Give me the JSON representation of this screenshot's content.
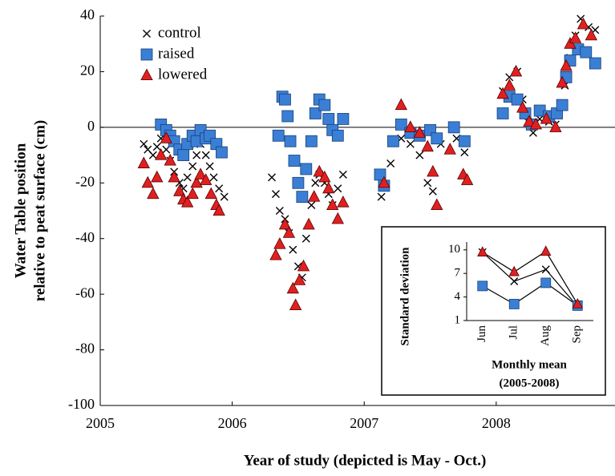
{
  "chart_data": [
    {
      "type": "scatter",
      "ylabel": [
        "Water Table position",
        "relative to peat surface (cm)"
      ],
      "xlabel": "Year of study (depicted is May -  Oct.)",
      "xlim": [
        2005,
        2008.9
      ],
      "ylim": [
        -100,
        40
      ],
      "xticks": [
        2005,
        2006,
        2007,
        2008
      ],
      "yticks": [
        -100,
        -80,
        -60,
        -40,
        -20,
        0,
        20,
        40
      ],
      "hline": 0,
      "legend": "upper left",
      "series": [
        {
          "name": "control",
          "color": "#000000",
          "marker": "x",
          "x": [
            2005.33,
            2005.36,
            2005.4,
            2005.43,
            2005.46,
            2005.5,
            2005.53,
            2005.56,
            2005.6,
            2005.63,
            2005.66,
            2005.7,
            2005.73,
            2005.76,
            2005.8,
            2005.83,
            2005.86,
            2005.9,
            2005.94,
            2006.3,
            2006.33,
            2006.36,
            2006.4,
            2006.43,
            2006.46,
            2006.5,
            2006.53,
            2006.56,
            2006.6,
            2006.63,
            2006.66,
            2006.7,
            2006.73,
            2006.76,
            2006.8,
            2006.84,
            2007.13,
            2007.2,
            2007.28,
            2007.35,
            2007.42,
            2007.48,
            2007.52,
            2007.58,
            2007.7,
            2007.76,
            2008.05,
            2008.1,
            2008.16,
            2008.2,
            2008.24,
            2008.28,
            2008.33,
            2008.4,
            2008.45,
            2008.52,
            2008.56,
            2008.6,
            2008.64,
            2008.7,
            2008.75
          ],
          "values": [
            -6,
            -8,
            -10,
            -7,
            -4,
            -8,
            -12,
            -16,
            -20,
            -22,
            -18,
            -14,
            -10,
            -6,
            -10,
            -14,
            -18,
            -22,
            -25,
            -18,
            -24,
            -30,
            -33,
            -38,
            -44,
            -50,
            -54,
            -40,
            -28,
            -20,
            -17,
            -20,
            -24,
            -28,
            -22,
            -17,
            -25,
            -13,
            -4,
            -6,
            -10,
            -20,
            -23,
            -6,
            -4,
            -9,
            13,
            18,
            20,
            10,
            2,
            -2,
            3,
            2,
            1,
            15,
            25,
            33,
            39,
            36,
            35
          ]
        },
        {
          "name": "raised",
          "color": "#3a7fd5",
          "marker": "square",
          "x": [
            2005.46,
            2005.5,
            2005.53,
            2005.56,
            2005.6,
            2005.63,
            2005.66,
            2005.7,
            2005.73,
            2005.76,
            2005.8,
            2005.83,
            2005.88,
            2005.92,
            2006.35,
            2006.38,
            2006.4,
            2006.42,
            2006.44,
            2006.47,
            2006.5,
            2006.53,
            2006.56,
            2006.6,
            2006.63,
            2006.66,
            2006.7,
            2006.73,
            2006.76,
            2006.8,
            2006.84,
            2007.12,
            2007.15,
            2007.22,
            2007.28,
            2007.35,
            2007.42,
            2007.5,
            2007.55,
            2007.68,
            2007.76,
            2008.05,
            2008.1,
            2008.16,
            2008.22,
            2008.27,
            2008.33,
            2008.4,
            2008.46,
            2008.5,
            2008.53,
            2008.56,
            2008.62,
            2008.68,
            2008.75
          ],
          "values": [
            1,
            -1,
            -3,
            -5,
            -8,
            -10,
            -6,
            -3,
            -5,
            -1,
            -4,
            -3,
            -6,
            -9,
            -3,
            11,
            10,
            4,
            -5,
            -12,
            -20,
            -25,
            -15,
            -5,
            5,
            10,
            8,
            3,
            -1,
            -3,
            3,
            -17,
            -21,
            -5,
            1,
            -2,
            -3,
            -1,
            -4,
            0,
            -5,
            5,
            11,
            10,
            5,
            1,
            6,
            4,
            5,
            8,
            18,
            24,
            28,
            27,
            23
          ]
        },
        {
          "name": "lowered",
          "color": "#e02020",
          "marker": "triangle",
          "x": [
            2005.33,
            2005.36,
            2005.4,
            2005.43,
            2005.46,
            2005.5,
            2005.53,
            2005.56,
            2005.6,
            2005.63,
            2005.66,
            2005.7,
            2005.73,
            2005.76,
            2005.8,
            2005.84,
            2005.88,
            2005.9,
            2006.33,
            2006.36,
            2006.4,
            2006.43,
            2006.46,
            2006.48,
            2006.51,
            2006.54,
            2006.58,
            2006.62,
            2006.66,
            2006.7,
            2006.73,
            2006.76,
            2006.8,
            2006.84,
            2007.15,
            2007.28,
            2007.35,
            2007.42,
            2007.48,
            2007.52,
            2007.55,
            2007.65,
            2007.75,
            2007.78,
            2008.05,
            2008.1,
            2008.15,
            2008.2,
            2008.25,
            2008.3,
            2008.38,
            2008.45,
            2008.5,
            2008.53,
            2008.56,
            2008.6,
            2008.66,
            2008.72
          ],
          "values": [
            -13,
            -20,
            -24,
            -18,
            -10,
            -4,
            -12,
            -18,
            -23,
            -26,
            -27,
            -24,
            -20,
            -17,
            -19,
            -24,
            -28,
            -30,
            -46,
            -42,
            -35,
            -38,
            -58,
            -64,
            -55,
            -50,
            -35,
            -25,
            -16,
            -18,
            -22,
            -28,
            -33,
            -27,
            -20,
            8,
            0,
            -2,
            -7,
            -16,
            -28,
            -8,
            -17,
            -19,
            12,
            15,
            20,
            7,
            2,
            1,
            3,
            0,
            16,
            22,
            30,
            32,
            37,
            33
          ]
        }
      ]
    },
    {
      "type": "line",
      "ylabel": "Standard deviation",
      "xlabel": [
        "Monthly mean",
        "(2005-2008)"
      ],
      "categories": [
        "Jun",
        "Jul",
        "Aug",
        "Sep"
      ],
      "ylim": [
        1,
        11
      ],
      "yticks": [
        1,
        4,
        7,
        10
      ],
      "series": [
        {
          "name": "control",
          "color": "#000000",
          "marker": "x",
          "values": [
            9.7,
            6,
            7.5,
            2.8
          ]
        },
        {
          "name": "raised",
          "color": "#3a7fd5",
          "marker": "square",
          "values": [
            5.4,
            3.1,
            5.8,
            2.9
          ]
        },
        {
          "name": "lowered",
          "color": "#e02020",
          "marker": "triangle",
          "values": [
            9.7,
            7.2,
            9.8,
            3.1
          ]
        }
      ]
    }
  ]
}
